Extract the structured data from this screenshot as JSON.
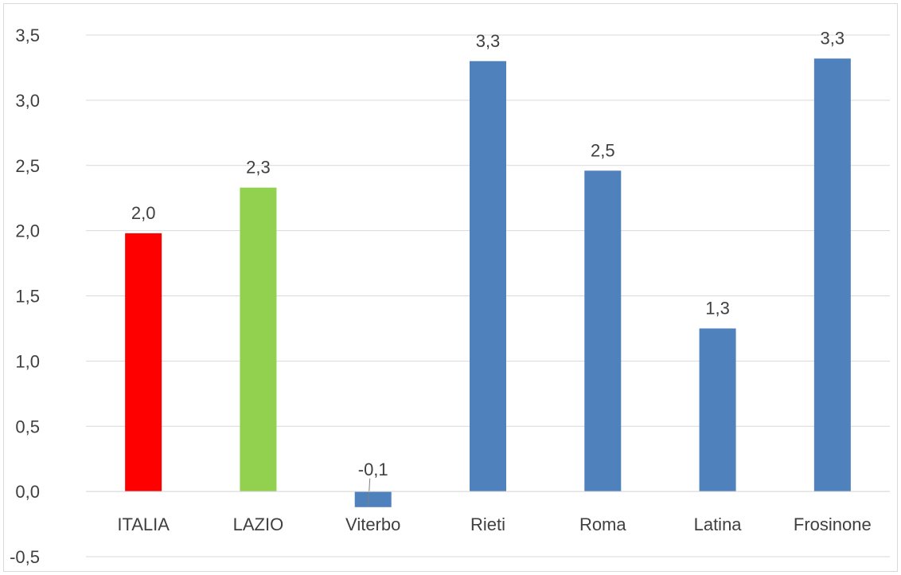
{
  "chart_data": {
    "type": "bar",
    "categories": [
      "ITALIA",
      "LAZIO",
      "Viterbo",
      "Rieti",
      "Roma",
      "Latina",
      "Frosinone"
    ],
    "values": [
      1.98,
      2.33,
      -0.12,
      3.3,
      2.46,
      1.25,
      3.32
    ],
    "data_labels": [
      "2,0",
      "2,3",
      "-0,1",
      "3,3",
      "2,5",
      "1,3",
      "3,3"
    ],
    "bar_colors": [
      "#ff0000",
      "#92d050",
      "#4f81bd",
      "#4f81bd",
      "#4f81bd",
      "#4f81bd",
      "#4f81bd"
    ],
    "y_ticks": [
      -0.5,
      0.0,
      0.5,
      1.0,
      1.5,
      2.0,
      2.5,
      3.0,
      3.5
    ],
    "y_tick_labels": [
      "-0,5",
      "0,0",
      "0,5",
      "1,0",
      "1,5",
      "2,0",
      "2,5",
      "3,0",
      "3,5"
    ],
    "ylim": [
      -0.5,
      3.5
    ],
    "grid": true,
    "colors": {
      "gridline": "#d9d9d9",
      "text": "#404040",
      "axis": "#d9d9d9"
    }
  }
}
